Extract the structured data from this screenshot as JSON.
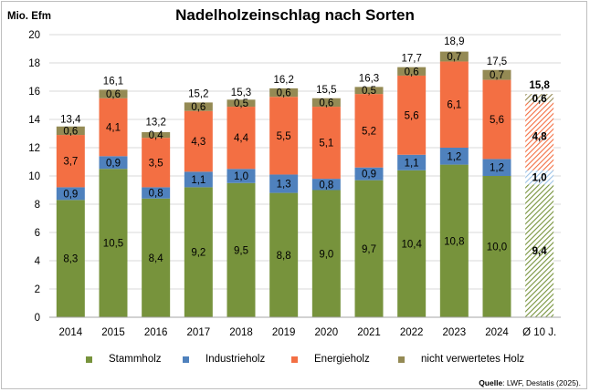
{
  "chart_data": {
    "type": "bar",
    "stacked": true,
    "title": "Nadelholzeinschlag nach Sorten",
    "ylabel": "Mio. Efm",
    "xlabel": "",
    "ylim": [
      0,
      20
    ],
    "yticks": [
      "0",
      "2",
      "4",
      "6",
      "8",
      "10",
      "12",
      "14",
      "16",
      "18",
      "20"
    ],
    "categories": [
      "2014",
      "2015",
      "2016",
      "2017",
      "2018",
      "2019",
      "2020",
      "2021",
      "2022",
      "2023",
      "2024",
      "Ø 10 J."
    ],
    "series": [
      {
        "name": "Stammholz",
        "color": "#77933c",
        "values": [
          8.3,
          10.5,
          8.4,
          9.2,
          9.5,
          8.8,
          9.0,
          9.7,
          10.4,
          10.8,
          10.0,
          9.4
        ],
        "labels": [
          "8,3",
          "10,5",
          "8,4",
          "9,2",
          "9,5",
          "8,8",
          "9,0",
          "9,7",
          "10,4",
          "10,8",
          "10,0",
          "9,4"
        ]
      },
      {
        "name": "Industrieholz",
        "color": "#4f81bd",
        "values": [
          0.9,
          0.9,
          0.8,
          1.1,
          1.0,
          1.3,
          0.8,
          0.9,
          1.1,
          1.2,
          1.2,
          1.0
        ],
        "labels": [
          "0,9",
          "0,9",
          "0,8",
          "1,1",
          "1,0",
          "1,3",
          "0,8",
          "0,9",
          "1,1",
          "1,2",
          "1,2",
          "1,0"
        ]
      },
      {
        "name": "Energieholz",
        "color": "#f36f43",
        "values": [
          3.7,
          4.1,
          3.5,
          4.3,
          4.4,
          5.5,
          5.1,
          5.2,
          5.6,
          6.1,
          5.6,
          4.8
        ],
        "labels": [
          "3,7",
          "4,1",
          "3,5",
          "4,3",
          "4,4",
          "5,5",
          "5,1",
          "5,2",
          "5,6",
          "6,1",
          "5,6",
          "4,8"
        ]
      },
      {
        "name": "nicht verwertetes Holz",
        "color": "#948a54",
        "values": [
          0.6,
          0.6,
          0.4,
          0.6,
          0.5,
          0.6,
          0.6,
          0.5,
          0.6,
          0.7,
          0.7,
          0.6
        ],
        "labels": [
          "0,6",
          "0,6",
          "0,4",
          "0,6",
          "0,5",
          "0,6",
          "0,6",
          "0,5",
          "0,6",
          "0,7",
          "0,7",
          "0,6"
        ]
      }
    ],
    "totals": [
      13.4,
      16.1,
      13.2,
      15.2,
      15.3,
      16.2,
      15.5,
      16.3,
      17.7,
      18.9,
      17.5,
      15.8
    ],
    "total_labels": [
      "13,4",
      "16,1",
      "13,2",
      "15,2",
      "15,3",
      "16,2",
      "15,5",
      "16,3",
      "17,7",
      "18,9",
      "17,5",
      "15,8"
    ],
    "average_category_index": 11,
    "average_style": "hatched",
    "grid": true,
    "legend_position": "bottom"
  },
  "source": {
    "label": "Quelle",
    "text": ": LWF, Destatis (2025)."
  }
}
